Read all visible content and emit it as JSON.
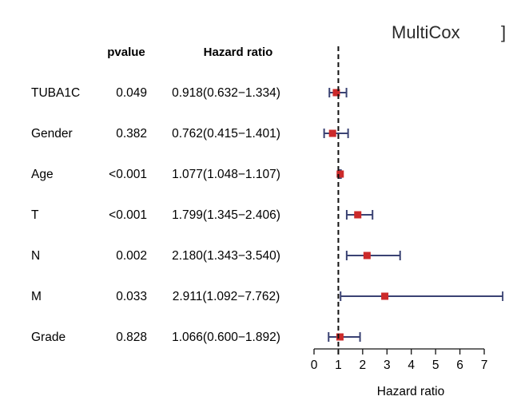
{
  "chart_data": {
    "type": "forest",
    "title": "MultiCox",
    "title_fragment": "]",
    "column_headers": {
      "pvalue": "pvalue",
      "hazard_ratio": "Hazard ratio"
    },
    "xlabel": "Hazard ratio",
    "xlim": [
      0,
      7
    ],
    "xticks": [
      0,
      1,
      2,
      3,
      4,
      5,
      6,
      7
    ],
    "reference_line": 1,
    "colors": {
      "point": "#cc2a2a",
      "ci": "#3a4273",
      "ref": "#111111",
      "text": "#111111"
    },
    "rows": [
      {
        "variable": "TUBA1C",
        "pvalue": "0.049",
        "hr_text": "0.918(0.632−1.334)",
        "hr": 0.918,
        "lower": 0.632,
        "upper": 1.334
      },
      {
        "variable": "Gender",
        "pvalue": "0.382",
        "hr_text": "0.762(0.415−1.401)",
        "hr": 0.762,
        "lower": 0.415,
        "upper": 1.401
      },
      {
        "variable": "Age",
        "pvalue": "<0.001",
        "hr_text": "1.077(1.048−1.107)",
        "hr": 1.077,
        "lower": 1.048,
        "upper": 1.107
      },
      {
        "variable": "T",
        "pvalue": "<0.001",
        "hr_text": "1.799(1.345−2.406)",
        "hr": 1.799,
        "lower": 1.345,
        "upper": 2.406
      },
      {
        "variable": "N",
        "pvalue": "0.002",
        "hr_text": "2.180(1.343−3.540)",
        "hr": 2.18,
        "lower": 1.343,
        "upper": 3.54
      },
      {
        "variable": "M",
        "pvalue": "0.033",
        "hr_text": "2.911(1.092−7.762)",
        "hr": 2.911,
        "lower": 1.092,
        "upper": 7.762
      },
      {
        "variable": "Grade",
        "pvalue": "0.828",
        "hr_text": "1.066(0.600−1.892)",
        "hr": 1.066,
        "lower": 0.6,
        "upper": 1.892
      }
    ]
  }
}
